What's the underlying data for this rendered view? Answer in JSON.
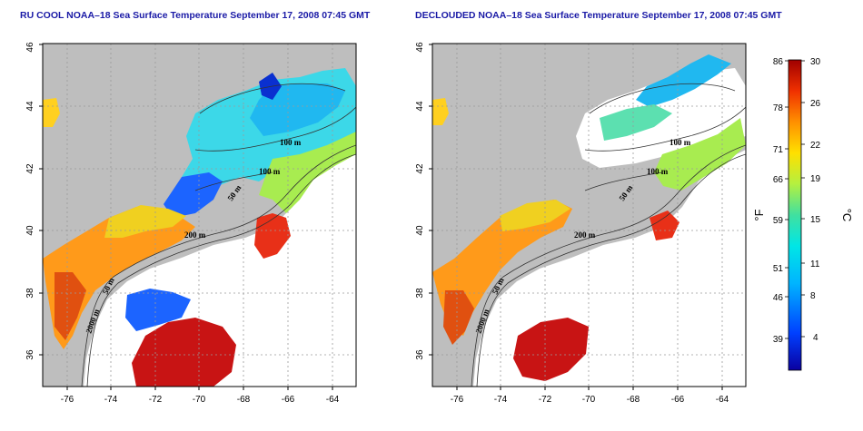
{
  "panels": [
    {
      "id": "left",
      "title": "RU COOL NOAA–18 Sea Surface Temperature September 17, 2008 07:45 GMT",
      "contour_labels": [
        "100 m",
        "100 m",
        "50 m",
        "200 m",
        "50 m",
        "2000 m"
      ]
    },
    {
      "id": "right",
      "title": "DECLOUDED NOAA–18 Sea Surface Temperature September 17, 2008 07:45 GMT",
      "contour_labels": [
        "100 m",
        "100 m",
        "50 m",
        "200 m",
        "50 m",
        "2000 m"
      ]
    }
  ],
  "axes": {
    "lon_ticks": [
      "-76",
      "-74",
      "-72",
      "-70",
      "-68",
      "-66",
      "-64"
    ],
    "lat_ticks": [
      "36",
      "38",
      "40",
      "42",
      "44",
      "46"
    ]
  },
  "colorbar": {
    "f_ticks": [
      "86",
      "78",
      "71",
      "66",
      "59",
      "51",
      "46",
      "39"
    ],
    "c_ticks": [
      "30",
      "26",
      "22",
      "19",
      "15",
      "11",
      "8",
      "4"
    ],
    "f_unit": "°F",
    "c_unit": "°C"
  },
  "colors": {
    "land": "#bebebe",
    "water_nodata": "#ffffff",
    "title": "#1a1aa6"
  }
}
